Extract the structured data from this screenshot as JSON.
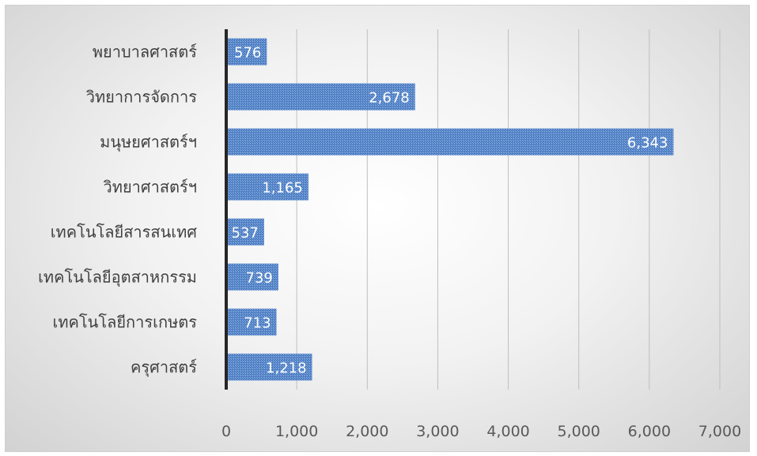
{
  "chart_data": {
    "type": "bar",
    "orientation": "horizontal",
    "categories": [
      "พยาบาลศาสตร์",
      "วิทยาการจัดการ",
      "มนุษยศาสตร์ฯ",
      "วิทยาศาสตร์ฯ",
      "เทคโนโลยีสารสนเทศ",
      "เทคโนโลยีอุตสาหกรรม",
      "เทคโนโลยีการเกษตร",
      "ครุศาสตร์"
    ],
    "values": [
      576,
      2678,
      6343,
      1165,
      537,
      739,
      713,
      1218
    ],
    "data_labels": [
      "576",
      "2,678",
      "6,343",
      "1,165",
      "537",
      "739",
      "713",
      "1,218"
    ],
    "xlim": [
      0,
      7000
    ],
    "xticks": [
      0,
      1000,
      2000,
      3000,
      4000,
      5000,
      6000,
      7000
    ],
    "xtick_labels": [
      "0",
      "1,000",
      "2,000",
      "3,000",
      "4,000",
      "5,000",
      "6,000",
      "7,000"
    ],
    "grid": "vertical",
    "legend": "none",
    "bar_color": "#4f7fc4",
    "bar_pattern_color": "#9bbbe6"
  }
}
